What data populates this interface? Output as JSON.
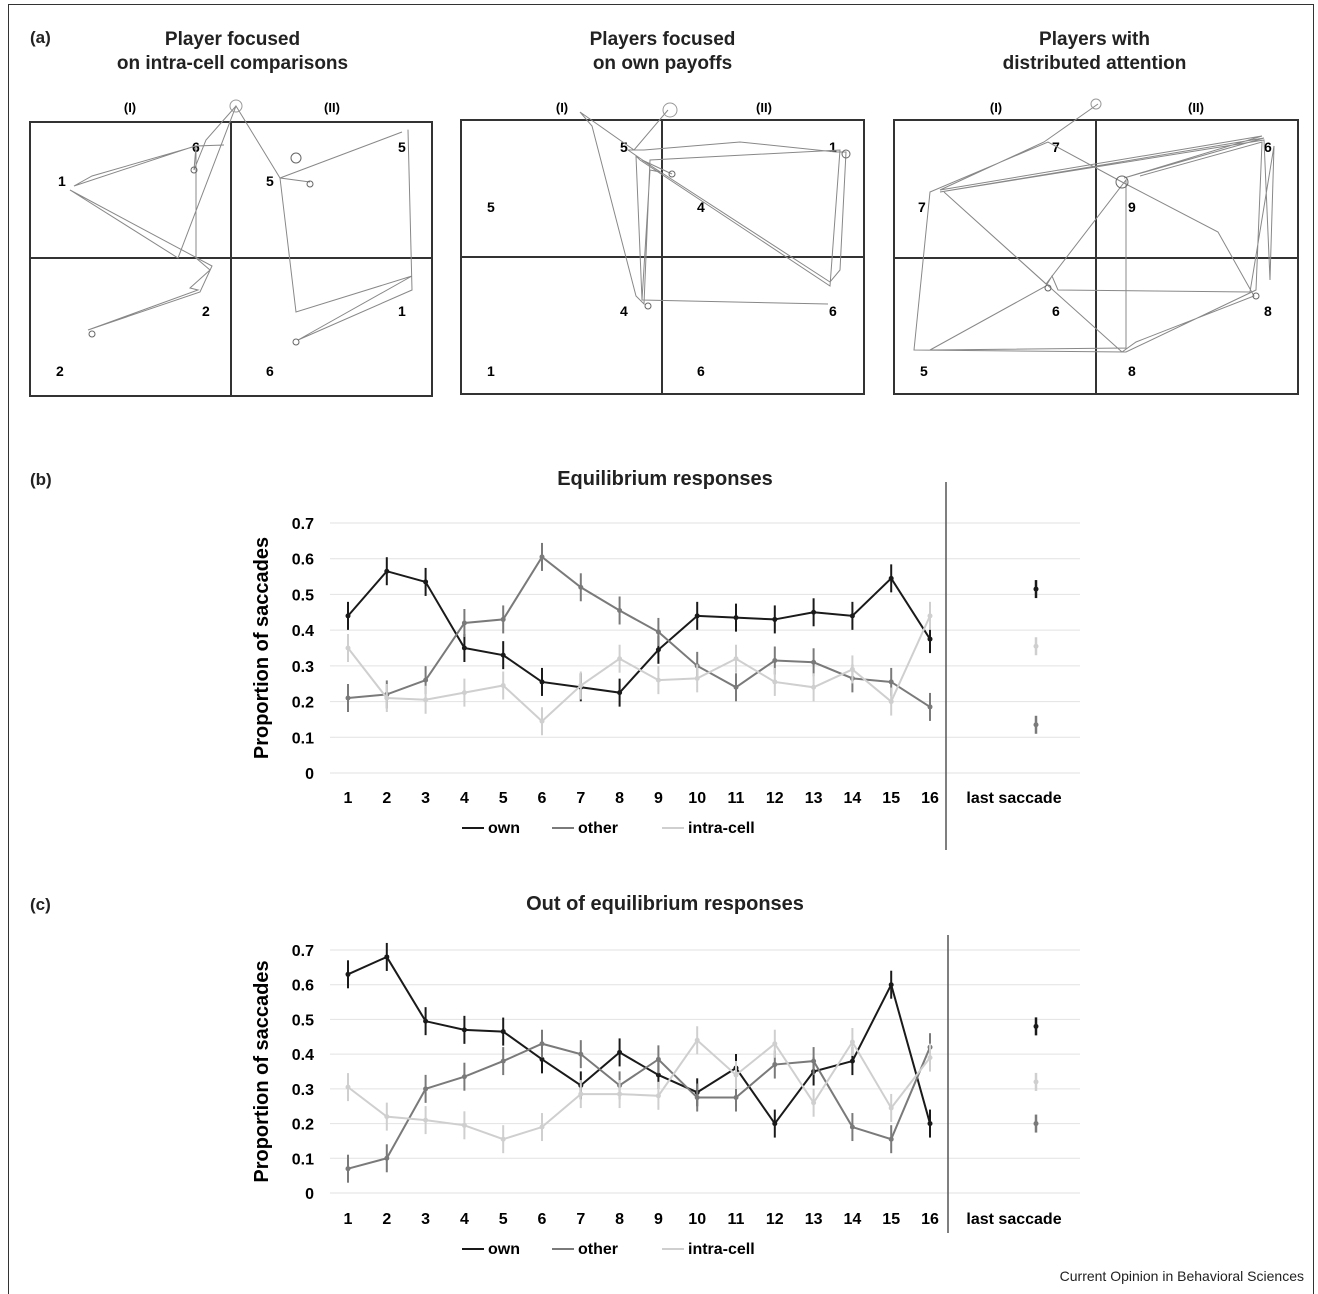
{
  "credit": "Current Opinion in Behavioral Sciences",
  "panel_a": {
    "label": "(a)",
    "grids": [
      {
        "title": [
          "Player focused",
          "on intra-cell comparisons"
        ],
        "cols": [
          "(I)",
          "(II)"
        ],
        "cells": [
          [
            "6",
            "5"
          ],
          [
            "1",
            "5"
          ],
          [
            "2",
            "1"
          ],
          [
            "2",
            "6"
          ]
        ]
      },
      {
        "title": [
          "Players focused",
          "on own payoffs"
        ],
        "cols": [
          "(I)",
          "(II)"
        ],
        "cells": [
          [
            "5",
            "1"
          ],
          [
            "5",
            "4"
          ],
          [
            "4",
            "6"
          ],
          [
            "1",
            "6"
          ]
        ]
      },
      {
        "title": [
          "Players with",
          "distributed attention"
        ],
        "cols": [
          "(I)",
          "(II)"
        ],
        "cells": [
          [
            "7",
            "6"
          ],
          [
            "7",
            "9"
          ],
          [
            "6",
            "8"
          ],
          [
            "5",
            "8"
          ]
        ]
      }
    ]
  },
  "chart_data": [
    {
      "label": "(b)",
      "type": "line",
      "title": "Equilibrium responses",
      "ylabel": "Proportion of saccades",
      "ylim": [
        0,
        0.7
      ],
      "yticks": [
        "0",
        "0.1",
        "0.2",
        "0.3",
        "0.4",
        "0.5",
        "0.6",
        "0.7"
      ],
      "categories": [
        "1",
        "2",
        "3",
        "4",
        "5",
        "6",
        "7",
        "8",
        "9",
        "10",
        "11",
        "12",
        "13",
        "14",
        "15",
        "16"
      ],
      "extra_category": "last saccade",
      "series": [
        {
          "name": "own",
          "color": "#1a1a1a",
          "values": [
            0.44,
            0.565,
            0.535,
            0.35,
            0.33,
            0.255,
            0.24,
            0.225,
            0.345,
            0.44,
            0.435,
            0.43,
            0.45,
            0.44,
            0.545,
            0.375
          ],
          "last": 0.515
        },
        {
          "name": "other",
          "color": "#7a7a7a",
          "values": [
            0.21,
            0.22,
            0.26,
            0.42,
            0.43,
            0.605,
            0.52,
            0.455,
            0.395,
            0.3,
            0.24,
            0.315,
            0.31,
            0.265,
            0.255,
            0.185
          ],
          "last": 0.135
        },
        {
          "name": "intra-cell",
          "color": "#cfcfcf",
          "values": [
            0.35,
            0.21,
            0.205,
            0.225,
            0.245,
            0.145,
            0.245,
            0.32,
            0.26,
            0.265,
            0.32,
            0.255,
            0.24,
            0.29,
            0.2,
            0.44
          ],
          "last": 0.355
        }
      ]
    },
    {
      "label": "(c)",
      "type": "line",
      "title": "Out of equilibrium responses",
      "ylabel": "Proportion of saccades",
      "ylim": [
        0,
        0.7
      ],
      "yticks": [
        "0",
        "0.1",
        "0.2",
        "0.3",
        "0.4",
        "0.5",
        "0.6",
        "0.7"
      ],
      "categories": [
        "1",
        "2",
        "3",
        "4",
        "5",
        "6",
        "7",
        "8",
        "9",
        "10",
        "11",
        "12",
        "13",
        "14",
        "15",
        "16"
      ],
      "extra_category": "last saccade",
      "series": [
        {
          "name": "own",
          "color": "#1a1a1a",
          "values": [
            0.63,
            0.68,
            0.495,
            0.47,
            0.465,
            0.385,
            0.31,
            0.405,
            0.34,
            0.29,
            0.36,
            0.2,
            0.35,
            0.38,
            0.6,
            0.2
          ],
          "last": 0.48
        },
        {
          "name": "other",
          "color": "#7a7a7a",
          "values": [
            0.07,
            0.1,
            0.3,
            0.335,
            0.38,
            0.43,
            0.4,
            0.31,
            0.385,
            0.275,
            0.275,
            0.37,
            0.38,
            0.19,
            0.155,
            0.42
          ],
          "last": 0.2
        },
        {
          "name": "intra-cell",
          "color": "#cfcfcf",
          "values": [
            0.305,
            0.22,
            0.21,
            0.195,
            0.155,
            0.19,
            0.285,
            0.285,
            0.28,
            0.44,
            0.34,
            0.43,
            0.26,
            0.435,
            0.245,
            0.39
          ],
          "last": 0.32
        }
      ]
    }
  ]
}
